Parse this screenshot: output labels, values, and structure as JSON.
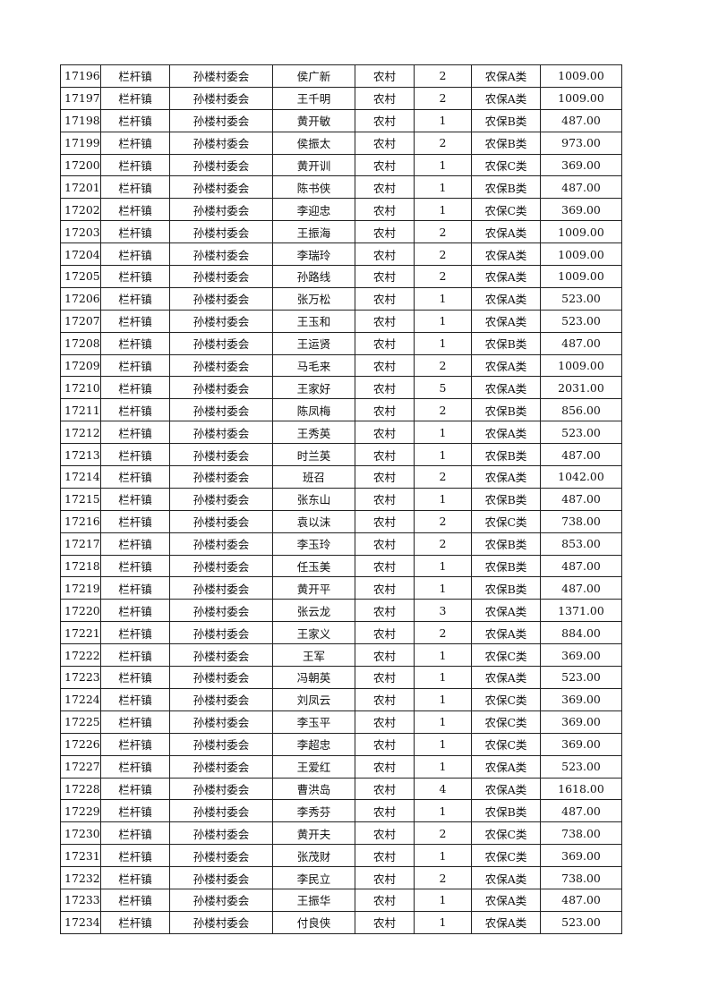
{
  "table": {
    "rows": [
      [
        "17196",
        "栏杆镇",
        "孙楼村委会",
        "侯广新",
        "农村",
        "2",
        "农保A类",
        "1009.00"
      ],
      [
        "17197",
        "栏杆镇",
        "孙楼村委会",
        "王千明",
        "农村",
        "2",
        "农保A类",
        "1009.00"
      ],
      [
        "17198",
        "栏杆镇",
        "孙楼村委会",
        "黄开敏",
        "农村",
        "1",
        "农保B类",
        "487.00"
      ],
      [
        "17199",
        "栏杆镇",
        "孙楼村委会",
        "侯振太",
        "农村",
        "2",
        "农保B类",
        "973.00"
      ],
      [
        "17200",
        "栏杆镇",
        "孙楼村委会",
        "黄开训",
        "农村",
        "1",
        "农保C类",
        "369.00"
      ],
      [
        "17201",
        "栏杆镇",
        "孙楼村委会",
        "陈书侠",
        "农村",
        "1",
        "农保B类",
        "487.00"
      ],
      [
        "17202",
        "栏杆镇",
        "孙楼村委会",
        "李迎忠",
        "农村",
        "1",
        "农保C类",
        "369.00"
      ],
      [
        "17203",
        "栏杆镇",
        "孙楼村委会",
        "王振海",
        "农村",
        "2",
        "农保A类",
        "1009.00"
      ],
      [
        "17204",
        "栏杆镇",
        "孙楼村委会",
        "李瑞玲",
        "农村",
        "2",
        "农保A类",
        "1009.00"
      ],
      [
        "17205",
        "栏杆镇",
        "孙楼村委会",
        "孙路线",
        "农村",
        "2",
        "农保A类",
        "1009.00"
      ],
      [
        "17206",
        "栏杆镇",
        "孙楼村委会",
        "张万松",
        "农村",
        "1",
        "农保A类",
        "523.00"
      ],
      [
        "17207",
        "栏杆镇",
        "孙楼村委会",
        "王玉和",
        "农村",
        "1",
        "农保A类",
        "523.00"
      ],
      [
        "17208",
        "栏杆镇",
        "孙楼村委会",
        "王运贤",
        "农村",
        "1",
        "农保B类",
        "487.00"
      ],
      [
        "17209",
        "栏杆镇",
        "孙楼村委会",
        "马毛来",
        "农村",
        "2",
        "农保A类",
        "1009.00"
      ],
      [
        "17210",
        "栏杆镇",
        "孙楼村委会",
        "王家好",
        "农村",
        "5",
        "农保A类",
        "2031.00"
      ],
      [
        "17211",
        "栏杆镇",
        "孙楼村委会",
        "陈凤梅",
        "农村",
        "2",
        "农保B类",
        "856.00"
      ],
      [
        "17212",
        "栏杆镇",
        "孙楼村委会",
        "王秀英",
        "农村",
        "1",
        "农保A类",
        "523.00"
      ],
      [
        "17213",
        "栏杆镇",
        "孙楼村委会",
        "时兰英",
        "农村",
        "1",
        "农保B类",
        "487.00"
      ],
      [
        "17214",
        "栏杆镇",
        "孙楼村委会",
        "班召",
        "农村",
        "2",
        "农保A类",
        "1042.00"
      ],
      [
        "17215",
        "栏杆镇",
        "孙楼村委会",
        "张东山",
        "农村",
        "1",
        "农保B类",
        "487.00"
      ],
      [
        "17216",
        "栏杆镇",
        "孙楼村委会",
        "袁以沫",
        "农村",
        "2",
        "农保C类",
        "738.00"
      ],
      [
        "17217",
        "栏杆镇",
        "孙楼村委会",
        "李玉玲",
        "农村",
        "2",
        "农保B类",
        "853.00"
      ],
      [
        "17218",
        "栏杆镇",
        "孙楼村委会",
        "任玉美",
        "农村",
        "1",
        "农保B类",
        "487.00"
      ],
      [
        "17219",
        "栏杆镇",
        "孙楼村委会",
        "黄开平",
        "农村",
        "1",
        "农保B类",
        "487.00"
      ],
      [
        "17220",
        "栏杆镇",
        "孙楼村委会",
        "张云龙",
        "农村",
        "3",
        "农保A类",
        "1371.00"
      ],
      [
        "17221",
        "栏杆镇",
        "孙楼村委会",
        "王家义",
        "农村",
        "2",
        "农保A类",
        "884.00"
      ],
      [
        "17222",
        "栏杆镇",
        "孙楼村委会",
        "王军",
        "农村",
        "1",
        "农保C类",
        "369.00"
      ],
      [
        "17223",
        "栏杆镇",
        "孙楼村委会",
        "冯朝英",
        "农村",
        "1",
        "农保A类",
        "523.00"
      ],
      [
        "17224",
        "栏杆镇",
        "孙楼村委会",
        "刘凤云",
        "农村",
        "1",
        "农保C类",
        "369.00"
      ],
      [
        "17225",
        "栏杆镇",
        "孙楼村委会",
        "李玉平",
        "农村",
        "1",
        "农保C类",
        "369.00"
      ],
      [
        "17226",
        "栏杆镇",
        "孙楼村委会",
        "李超忠",
        "农村",
        "1",
        "农保C类",
        "369.00"
      ],
      [
        "17227",
        "栏杆镇",
        "孙楼村委会",
        "王爱红",
        "农村",
        "1",
        "农保A类",
        "523.00"
      ],
      [
        "17228",
        "栏杆镇",
        "孙楼村委会",
        "曹洪岛",
        "农村",
        "4",
        "农保A类",
        "1618.00"
      ],
      [
        "17229",
        "栏杆镇",
        "孙楼村委会",
        "李秀芬",
        "农村",
        "1",
        "农保B类",
        "487.00"
      ],
      [
        "17230",
        "栏杆镇",
        "孙楼村委会",
        "黄开夫",
        "农村",
        "2",
        "农保C类",
        "738.00"
      ],
      [
        "17231",
        "栏杆镇",
        "孙楼村委会",
        "张茂财",
        "农村",
        "1",
        "农保C类",
        "369.00"
      ],
      [
        "17232",
        "栏杆镇",
        "孙楼村委会",
        "李民立",
        "农村",
        "2",
        "农保A类",
        "738.00"
      ],
      [
        "17233",
        "栏杆镇",
        "孙楼村委会",
        "王振华",
        "农村",
        "1",
        "农保A类",
        "487.00"
      ],
      [
        "17234",
        "栏杆镇",
        "孙楼村委会",
        "付良侠",
        "农村",
        "1",
        "农保A类",
        "523.00"
      ]
    ]
  }
}
